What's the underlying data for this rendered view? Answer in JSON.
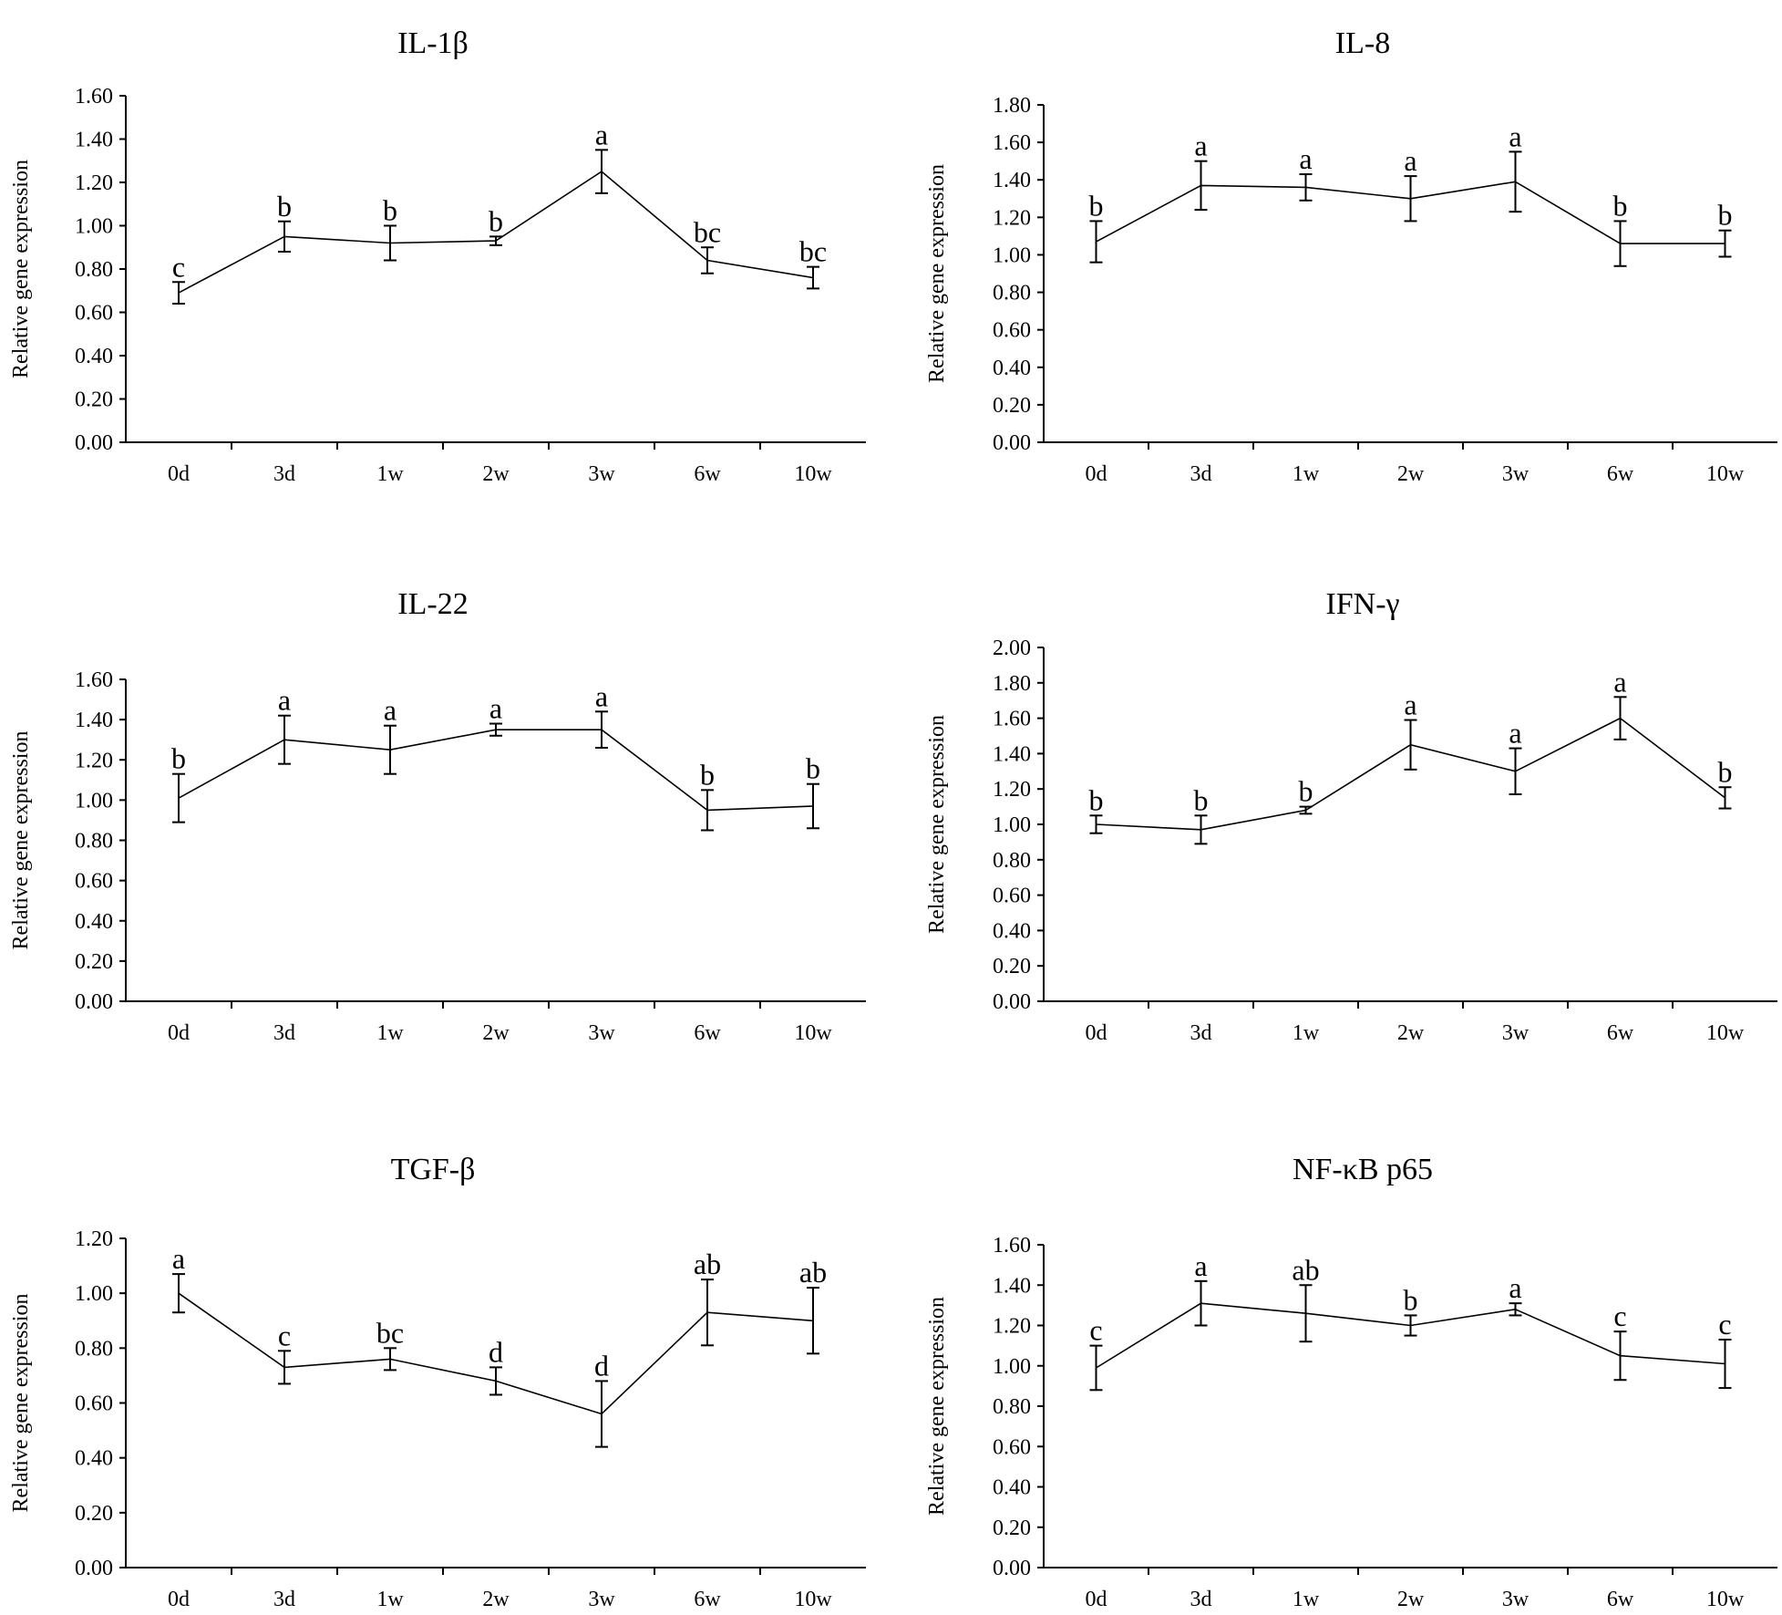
{
  "chart_data": [
    {
      "type": "line",
      "title": "IL-1β",
      "ylabel": "Relative gene expression",
      "xlabel": "",
      "categories": [
        "0d",
        "3d",
        "1w",
        "2w",
        "3w",
        "6w",
        "10w"
      ],
      "values": [
        0.69,
        0.95,
        0.92,
        0.93,
        1.25,
        0.84,
        0.76
      ],
      "errors": [
        0.05,
        0.07,
        0.08,
        0.02,
        0.1,
        0.06,
        0.05
      ],
      "significance": [
        "c",
        "b",
        "b",
        "b",
        "a",
        "bc",
        "bc"
      ],
      "ylim": [
        0,
        1.6
      ],
      "yticks": [
        "0.00",
        "0.20",
        "0.40",
        "0.60",
        "0.80",
        "1.00",
        "1.20",
        "1.40",
        "1.60"
      ]
    },
    {
      "type": "line",
      "title": "IL-8",
      "ylabel": "Relative gene expression",
      "xlabel": "",
      "categories": [
        "0d",
        "3d",
        "1w",
        "2w",
        "3w",
        "6w",
        "10w"
      ],
      "values": [
        1.07,
        1.37,
        1.36,
        1.3,
        1.39,
        1.06,
        1.06
      ],
      "errors": [
        0.11,
        0.13,
        0.07,
        0.12,
        0.16,
        0.12,
        0.07
      ],
      "significance": [
        "b",
        "a",
        "a",
        "a",
        "a",
        "b",
        "b"
      ],
      "ylim": [
        0,
        1.8
      ],
      "yticks": [
        "0.00",
        "0.20",
        "0.40",
        "0.60",
        "0.80",
        "1.00",
        "1.20",
        "1.40",
        "1.60",
        "1.80"
      ]
    },
    {
      "type": "line",
      "title": "IL-22",
      "ylabel": "Relative gene expression",
      "xlabel": "",
      "categories": [
        "0d",
        "3d",
        "1w",
        "2w",
        "3w",
        "6w",
        "10w"
      ],
      "values": [
        1.01,
        1.3,
        1.25,
        1.35,
        1.35,
        0.95,
        0.97
      ],
      "errors": [
        0.12,
        0.12,
        0.12,
        0.03,
        0.09,
        0.1,
        0.11
      ],
      "significance": [
        "b",
        "a",
        "a",
        "a",
        "a",
        "b",
        "b"
      ],
      "ylim": [
        0,
        1.6
      ],
      "yticks": [
        "0.00",
        "0.20",
        "0.40",
        "0.60",
        "0.80",
        "1.00",
        "1.20",
        "1.40",
        "1.60"
      ]
    },
    {
      "type": "line",
      "title": "IFN-γ",
      "ylabel": "Relative gene expression",
      "xlabel": "",
      "categories": [
        "0d",
        "3d",
        "1w",
        "2w",
        "3w",
        "6w",
        "10w"
      ],
      "values": [
        1.0,
        0.97,
        1.08,
        1.45,
        1.3,
        1.6,
        1.15
      ],
      "errors": [
        0.05,
        0.08,
        0.02,
        0.14,
        0.13,
        0.12,
        0.06
      ],
      "significance": [
        "b",
        "b",
        "b",
        "a",
        "a",
        "a",
        "b"
      ],
      "ylim": [
        0,
        2.0
      ],
      "yticks": [
        "0.00",
        "0.20",
        "0.40",
        "0.60",
        "0.80",
        "1.00",
        "1.20",
        "1.40",
        "1.60",
        "1.80",
        "2.00"
      ]
    },
    {
      "type": "line",
      "title": "TGF-β",
      "ylabel": "Relative gene expression",
      "xlabel": "",
      "categories": [
        "0d",
        "3d",
        "1w",
        "2w",
        "3w",
        "6w",
        "10w"
      ],
      "values": [
        1.0,
        0.73,
        0.76,
        0.68,
        0.56,
        0.93,
        0.9
      ],
      "errors": [
        0.07,
        0.06,
        0.04,
        0.05,
        0.12,
        0.12,
        0.12
      ],
      "significance": [
        "a",
        "c",
        "bc",
        "d",
        "d",
        "ab",
        "ab"
      ],
      "ylim": [
        0,
        1.2
      ],
      "yticks": [
        "0.00",
        "0.20",
        "0.40",
        "0.60",
        "0.80",
        "1.00",
        "1.20"
      ]
    },
    {
      "type": "line",
      "title": "NF-κB p65",
      "ylabel": "Relative gene expression",
      "xlabel": "",
      "categories": [
        "0d",
        "3d",
        "1w",
        "2w",
        "3w",
        "6w",
        "10w"
      ],
      "values": [
        0.99,
        1.31,
        1.26,
        1.2,
        1.28,
        1.05,
        1.01
      ],
      "errors": [
        0.11,
        0.11,
        0.14,
        0.05,
        0.03,
        0.12,
        0.12
      ],
      "significance": [
        "c",
        "a",
        "ab",
        "b",
        "a",
        "c",
        "c"
      ],
      "ylim": [
        0,
        1.6
      ],
      "yticks": [
        "0.00",
        "0.20",
        "0.40",
        "0.60",
        "0.80",
        "1.00",
        "1.20",
        "1.40",
        "1.60"
      ]
    }
  ]
}
